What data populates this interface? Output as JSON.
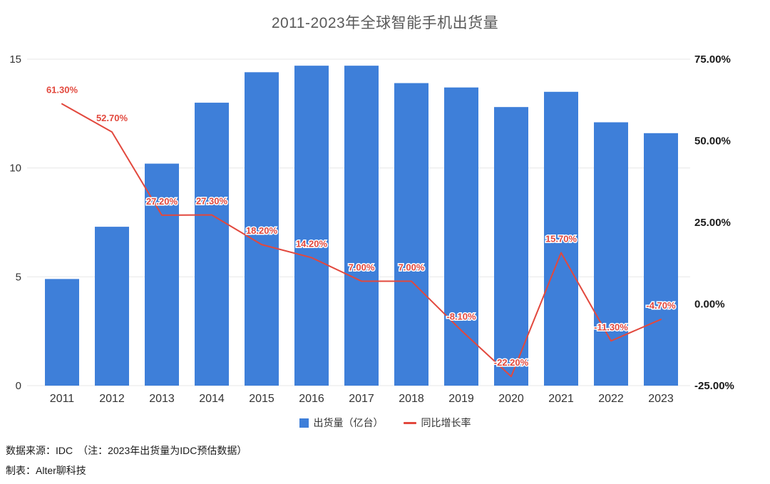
{
  "title": "2011-2023年全球智能手机出货量",
  "chart_data": {
    "type": "bar+line",
    "title": "2011-2023年全球智能手机出货量",
    "categories": [
      "2011",
      "2012",
      "2013",
      "2014",
      "2015",
      "2016",
      "2017",
      "2018",
      "2019",
      "2020",
      "2021",
      "2022",
      "2023"
    ],
    "series": [
      {
        "name": "出货量（亿台）",
        "type": "bar",
        "axis": "left",
        "color": "#3e7fd9",
        "values": [
          4.9,
          7.3,
          10.2,
          13.0,
          14.4,
          14.7,
          14.7,
          13.9,
          13.7,
          12.8,
          13.5,
          12.1,
          11.6
        ]
      },
      {
        "name": "同比增长率",
        "type": "line",
        "axis": "right",
        "color": "#e2483d",
        "values": [
          61.3,
          52.7,
          27.2,
          27.3,
          18.2,
          14.2,
          7.0,
          7.0,
          -8.1,
          -22.2,
          15.7,
          -11.3,
          -4.7
        ],
        "labels": [
          "61.30%",
          "52.70%",
          "27.20%",
          "27.30%",
          "18.20%",
          "14.20%",
          "7.00%",
          "7.00%",
          "-8.10%",
          "-22.20%",
          "15.70%",
          "-11.30%",
          "-4.70%"
        ]
      }
    ],
    "left_axis": {
      "min": 0,
      "max": 15,
      "ticks": [
        "15",
        "10",
        "5",
        "0"
      ]
    },
    "right_axis": {
      "min": -25,
      "max": 75,
      "ticks": [
        "75.00%",
        "50.00%",
        "25.00%",
        "0.00%",
        "-25.00%"
      ]
    },
    "grid": true,
    "legend_position": "bottom"
  },
  "legend": {
    "items": [
      {
        "label": "出货量（亿台）",
        "color": "#3e7fd9",
        "marker": "square"
      },
      {
        "label": "同比增长率",
        "color": "#e2483d",
        "marker": "line"
      }
    ]
  },
  "footer": {
    "source": "数据来源：IDC　（注：2023年出货量为IDC预估数据）",
    "author": "制表：Alter聊科技"
  },
  "colors": {
    "bar": "#3e7fd9",
    "line": "#e2483d",
    "grid": "#e7e7e7",
    "title_text": "#595959",
    "axis_text": "#333333"
  }
}
